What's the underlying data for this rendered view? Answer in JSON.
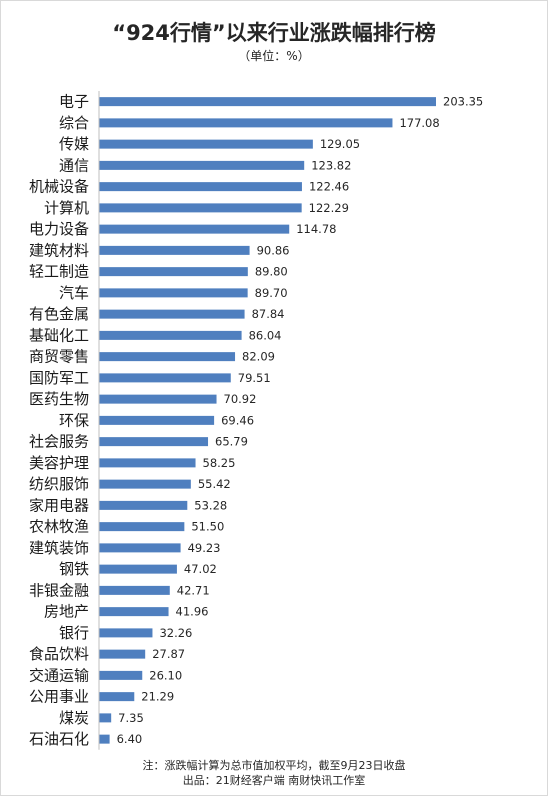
{
  "header": {
    "title": "“924行情”以来行业涨跌幅排行榜",
    "subtitle": "（单位：%）"
  },
  "footer": {
    "note": "注：涨跌幅计算为总市值加权平均，截至9月23日收盘",
    "source": "出品：21财经客户端 南财快讯工作室"
  },
  "colors": {
    "bar": "#4f7fbf"
  },
  "chart_data": {
    "type": "bar",
    "orientation": "horizontal",
    "title": "“924行情”以来行业涨跌幅排行榜",
    "subtitle": "（单位：%）",
    "xlim": [
      0,
      210
    ],
    "grid": false,
    "legend": "none",
    "categories": [
      "电子",
      "综合",
      "传媒",
      "通信",
      "机械设备",
      "计算机",
      "电力设备",
      "建筑材料",
      "轻工制造",
      "汽车",
      "有色金属",
      "基础化工",
      "商贸零售",
      "国防军工",
      "医药生物",
      "环保",
      "社会服务",
      "美容护理",
      "纺织服饰",
      "家用电器",
      "农林牧渔",
      "建筑装饰",
      "钢铁",
      "非银金融",
      "房地产",
      "银行",
      "食品饮料",
      "交通运输",
      "公用事业",
      "煤炭",
      "石油石化"
    ],
    "values": [
      203.35,
      177.08,
      129.05,
      123.82,
      122.46,
      122.29,
      114.78,
      90.86,
      89.8,
      89.7,
      87.84,
      86.04,
      82.09,
      79.51,
      70.92,
      69.46,
      65.79,
      58.25,
      55.42,
      53.28,
      51.5,
      49.23,
      47.02,
      42.71,
      41.96,
      32.26,
      27.87,
      26.1,
      21.29,
      7.35,
      6.4
    ],
    "value_labels": [
      "203.35",
      "177.08",
      "129.05",
      "123.82",
      "122.46",
      "122.29",
      "114.78",
      "90.86",
      "89.80",
      "89.70",
      "87.84",
      "86.04",
      "82.09",
      "79.51",
      "70.92",
      "69.46",
      "65.79",
      "58.25",
      "55.42",
      "53.28",
      "51.50",
      "49.23",
      "47.02",
      "42.71",
      "41.96",
      "32.26",
      "27.87",
      "26.10",
      "21.29",
      "7.35",
      "6.40"
    ]
  }
}
